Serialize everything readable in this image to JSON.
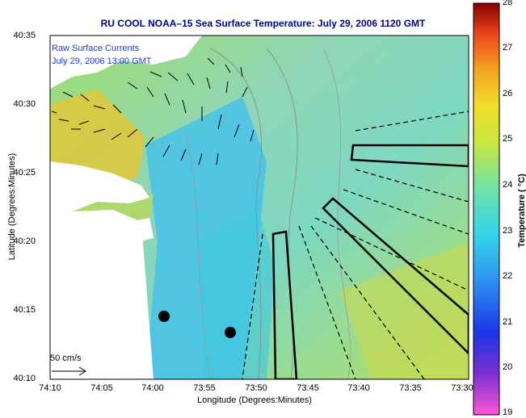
{
  "title": "RU COOL  NOAA–15  Sea Surface Temperature:  July 29, 2006 1120 GMT",
  "annotation_line1": "Raw Surface Currents",
  "annotation_line2": "July 29, 2006 13:00 GMT",
  "axes": {
    "y_label": "Latitude (Degrees:Minutes)",
    "x_label": "Longitude (Degrees:Minutes)",
    "y_ticks": [
      "40:35",
      "40:30",
      "40:25",
      "40:20",
      "40:15",
      "40:10"
    ],
    "x_ticks": [
      "74:10",
      "74:05",
      "74:00",
      "73:55",
      "73:50",
      "73:45",
      "73:40",
      "73:35",
      "73:30"
    ]
  },
  "colorbar": {
    "label": "Temperature ( °C)",
    "ticks": [
      "28",
      "27",
      "26",
      "25",
      "24",
      "23",
      "22",
      "21",
      "20",
      "19"
    ],
    "min": 19,
    "max": 28
  },
  "scale_label": "50 cm/s",
  "colors": {
    "title": "#00008b",
    "annotation": "#1a3bd6",
    "land": "#ffffff",
    "warm_sst": "#d7c83a",
    "mid_sst": "#7fd3a0",
    "cool_sst": "#4ec3e6"
  }
}
